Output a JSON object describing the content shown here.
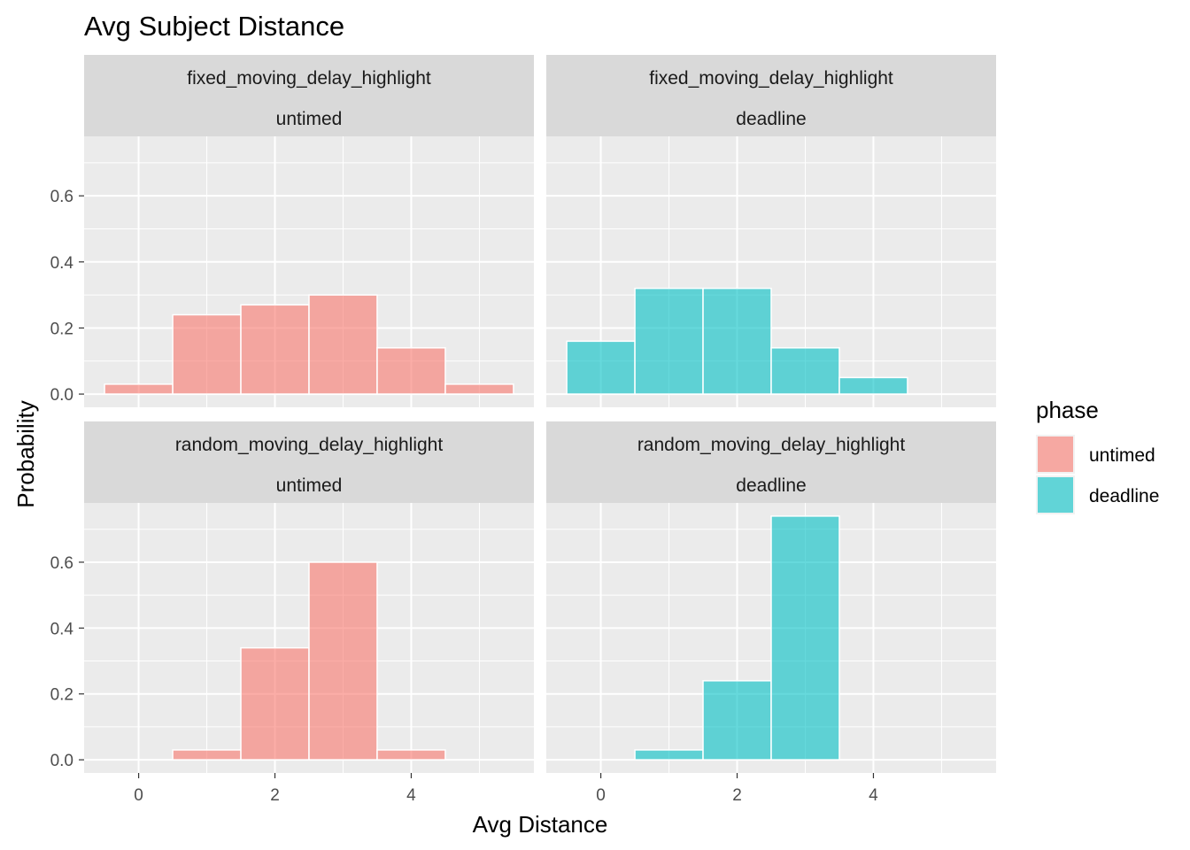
{
  "chart_data": {
    "type": "bar",
    "title": "Avg Subject Distance",
    "xlabel": "Avg Distance",
    "ylabel": "Probability",
    "xlim": [
      -0.8,
      5.8
    ],
    "ylim": [
      -0.04,
      0.78
    ],
    "x_ticks": [
      "0",
      "2",
      "4"
    ],
    "y_ticks": [
      "0.0",
      "0.2",
      "0.4",
      "0.6"
    ],
    "bin_width": 1,
    "grid": true,
    "legend": {
      "title": "phase",
      "position": "right",
      "entries": [
        {
          "label": "untimed",
          "color": "#F8766D"
        },
        {
          "label": "deadline",
          "color": "#00BFC4"
        }
      ]
    },
    "panels": [
      {
        "strip": [
          "fixed_moving_delay_highlight",
          "untimed"
        ],
        "phase": "untimed",
        "x": [
          0,
          1,
          2,
          3,
          4,
          5
        ],
        "values": [
          0.03,
          0.24,
          0.27,
          0.3,
          0.14,
          0.03
        ]
      },
      {
        "strip": [
          "fixed_moving_delay_highlight",
          "deadline"
        ],
        "phase": "deadline",
        "x": [
          0,
          1,
          2,
          3,
          4
        ],
        "values": [
          0.16,
          0.32,
          0.32,
          0.14,
          0.05
        ]
      },
      {
        "strip": [
          "random_moving_delay_highlight",
          "untimed"
        ],
        "phase": "untimed",
        "x": [
          1,
          2,
          3,
          4
        ],
        "values": [
          0.03,
          0.34,
          0.6,
          0.03
        ]
      },
      {
        "strip": [
          "random_moving_delay_highlight",
          "deadline"
        ],
        "phase": "deadline",
        "x": [
          1,
          2,
          3
        ],
        "values": [
          0.03,
          0.24,
          0.74
        ]
      }
    ]
  }
}
